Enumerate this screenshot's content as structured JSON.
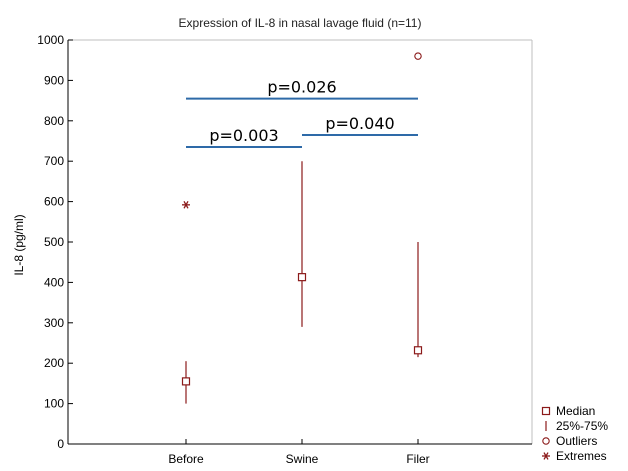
{
  "chart_data": {
    "type": "box",
    "title": "Expression of IL-8 in nasal lavage fluid (n=11)",
    "xlabel": "",
    "ylabel": "IL-8 (pg/ml)",
    "ylim": [
      0,
      1000
    ],
    "yticks": [
      "0",
      "100",
      "200",
      "300",
      "400",
      "500",
      "600",
      "700",
      "800",
      "900",
      "1000"
    ],
    "grid": false,
    "categories": [
      "Before",
      "Swine",
      "Filer"
    ],
    "median": [
      155,
      413,
      232
    ],
    "q1": [
      100,
      290,
      215
    ],
    "q3": [
      205,
      700,
      500
    ],
    "outliers": [
      null,
      null,
      960
    ],
    "extremes": [
      592,
      null,
      null
    ],
    "comparisons": [
      {
        "from": "Before",
        "to": "Filer",
        "level": 855,
        "label": "p=0.026"
      },
      {
        "from": "Before",
        "to": "Swine",
        "level": 735,
        "label": "p=0.003"
      },
      {
        "from": "Swine",
        "to": "Filer",
        "level": 765,
        "label": "p=0.040"
      }
    ],
    "legend": {
      "position": "bottom-right",
      "entries": [
        {
          "symbol": "square",
          "label": "Median"
        },
        {
          "symbol": "bar",
          "label": "25%-75%"
        },
        {
          "symbol": "circle",
          "label": "Outliers"
        },
        {
          "symbol": "star",
          "label": "Extremes"
        }
      ]
    },
    "colors": {
      "series": "#8b1a1a",
      "comparison": "#2e6aa8",
      "axis": "#000000",
      "frame": "#bfbfbf"
    }
  }
}
